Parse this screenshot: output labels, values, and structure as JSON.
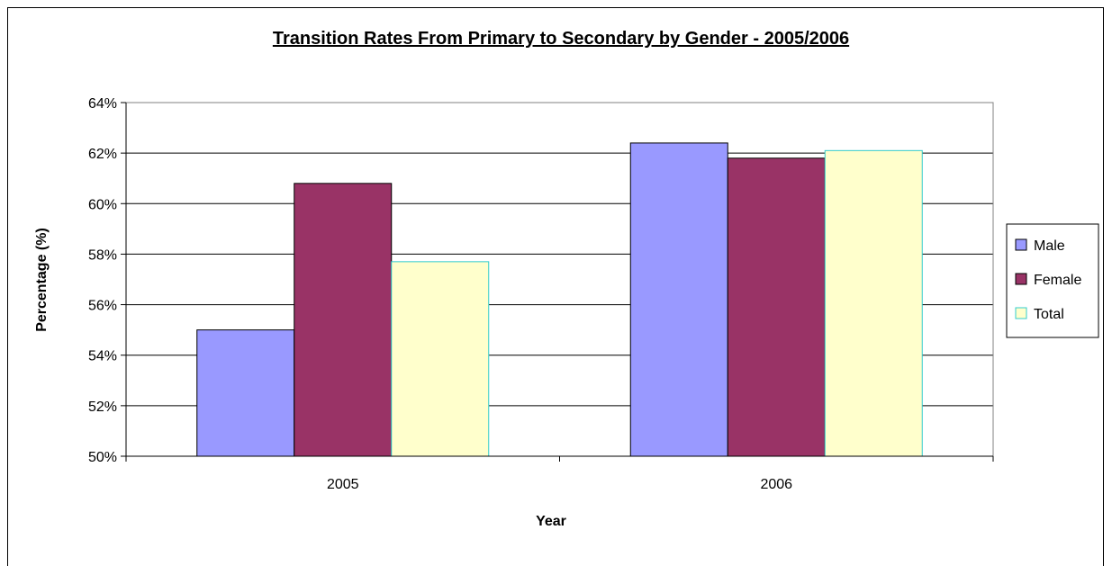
{
  "chart_data": {
    "type": "bar",
    "title": "Transition Rates From Primary to Secondary by Gender - 2005/2006",
    "xlabel": "Year",
    "ylabel": "Percentage (%)",
    "categories": [
      "2005",
      "2006"
    ],
    "series": [
      {
        "name": "Male",
        "values": [
          55.0,
          62.4
        ],
        "color": "#9999ff",
        "stroke": "#000000"
      },
      {
        "name": "Female",
        "values": [
          60.8,
          61.8
        ],
        "color": "#993366",
        "stroke": "#000000"
      },
      {
        "name": "Total",
        "values": [
          57.7,
          62.1
        ],
        "color": "#ffffcc",
        "stroke": "#33cccc"
      }
    ],
    "ylim": [
      50,
      64
    ],
    "yticks": [
      {
        "value": 50,
        "label": "50%"
      },
      {
        "value": 52,
        "label": "52%"
      },
      {
        "value": 54,
        "label": "54%"
      },
      {
        "value": 56,
        "label": "56%"
      },
      {
        "value": 58,
        "label": "58%"
      },
      {
        "value": 60,
        "label": "60%"
      },
      {
        "value": 62,
        "label": "62%"
      },
      {
        "value": 64,
        "label": "64%"
      }
    ],
    "grid": true,
    "legend_position": "right"
  }
}
